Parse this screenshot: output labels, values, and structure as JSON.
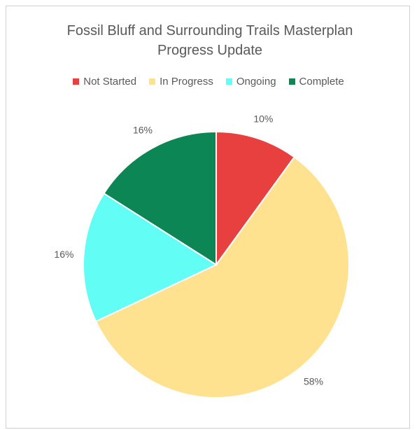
{
  "chart_data": {
    "type": "pie",
    "title": "Fossil Bluff and Surrounding Trails Masterplan Progress Update",
    "categories": [
      "Not Started",
      "In Progress",
      "Ongoing",
      "Complete"
    ],
    "values": [
      10,
      58,
      16,
      16
    ],
    "value_labels": [
      "10%",
      "58%",
      "16%",
      "16%"
    ],
    "colors": [
      "#e8403f",
      "#ffe28f",
      "#62fdf4",
      "#0c8654"
    ],
    "legend": "top"
  }
}
